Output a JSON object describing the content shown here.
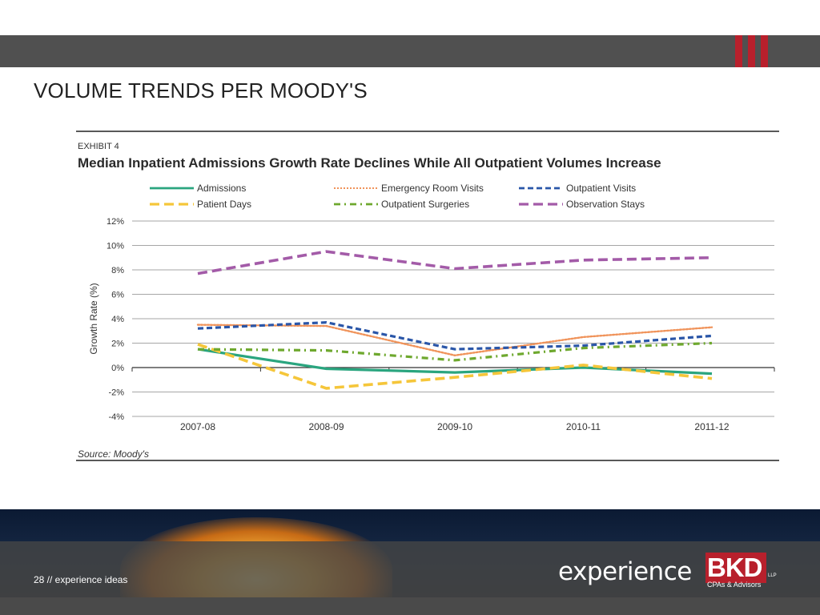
{
  "slide": {
    "title": "VOLUME TRENDS PER MOODY'S",
    "page_label": "28 // experience ideas",
    "accent_color": "#b8202c"
  },
  "logo": {
    "word": "experience",
    "brand": "BKD",
    "llp": "LLP",
    "tagline": "CPAs & Advisors"
  },
  "chart_data": {
    "type": "line",
    "exhibit_label": "EXHIBIT 4",
    "title": "Median Inpatient Admissions Growth Rate Declines While All Outpatient Volumes Increase",
    "xlabel": "",
    "ylabel": "Growth Rate (%)",
    "ylim": [
      -4,
      12
    ],
    "yticks": [
      12,
      10,
      8,
      6,
      4,
      2,
      0,
      -2,
      -4
    ],
    "ytick_labels": [
      "12%",
      "10%",
      "8%",
      "6%",
      "4%",
      "2%",
      "0%",
      "-2%",
      "-4%"
    ],
    "categories": [
      "2007-08",
      "2008-09",
      "2009-10",
      "2010-11",
      "2011-12"
    ],
    "grid": true,
    "legend_position": "top",
    "source": "Source: Moody's",
    "series": [
      {
        "name": "Admissions",
        "values": [
          1.5,
          -0.1,
          -0.4,
          0.0,
          -0.5
        ],
        "color": "#2aa57f",
        "style": "solid"
      },
      {
        "name": "Emergency Room Visits",
        "values": [
          3.5,
          3.4,
          1.0,
          2.5,
          3.3
        ],
        "color": "#f0935a",
        "style": "dotted"
      },
      {
        "name": "Outpatient Visits",
        "values": [
          3.2,
          3.7,
          1.5,
          1.8,
          2.6
        ],
        "color": "#2a56a8",
        "style": "dashed"
      },
      {
        "name": "Patient Days",
        "values": [
          1.9,
          -1.7,
          -0.8,
          0.2,
          -0.9
        ],
        "color": "#f5c63a",
        "style": "longdash"
      },
      {
        "name": "Outpatient Surgeries",
        "values": [
          1.5,
          1.4,
          0.6,
          1.6,
          2.0
        ],
        "color": "#6ea82e",
        "style": "dashdot"
      },
      {
        "name": "Observation Stays",
        "values": [
          7.7,
          9.5,
          8.1,
          8.8,
          9.0
        ],
        "color": "#a35ba8",
        "style": "longdash"
      }
    ]
  }
}
